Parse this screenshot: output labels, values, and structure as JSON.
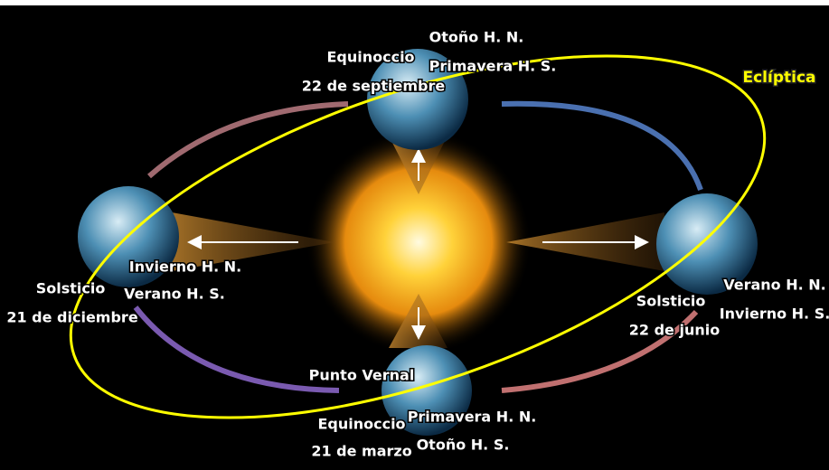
{
  "ecliptic_label": "Eclíptica",
  "vernal_point": "Punto Vernal",
  "positions": [
    {
      "event": "Equinoccio",
      "date": "22 de septiembre",
      "seasons": [
        "Otoño H. N.",
        "Primavera H. S."
      ]
    },
    {
      "event": "Solsticio",
      "date": "21 de diciembre",
      "seasons": [
        "Invierno H. N.",
        "Verano H. S."
      ]
    },
    {
      "event": "Solsticio",
      "date": "22 de junio",
      "seasons": [
        "Verano H. N.",
        "Invierno H. S."
      ]
    },
    {
      "event": "Equinoccio",
      "date": "21 de marzo",
      "seasons": [
        "Primavera H. N.",
        "Otoño H. S."
      ]
    }
  ]
}
